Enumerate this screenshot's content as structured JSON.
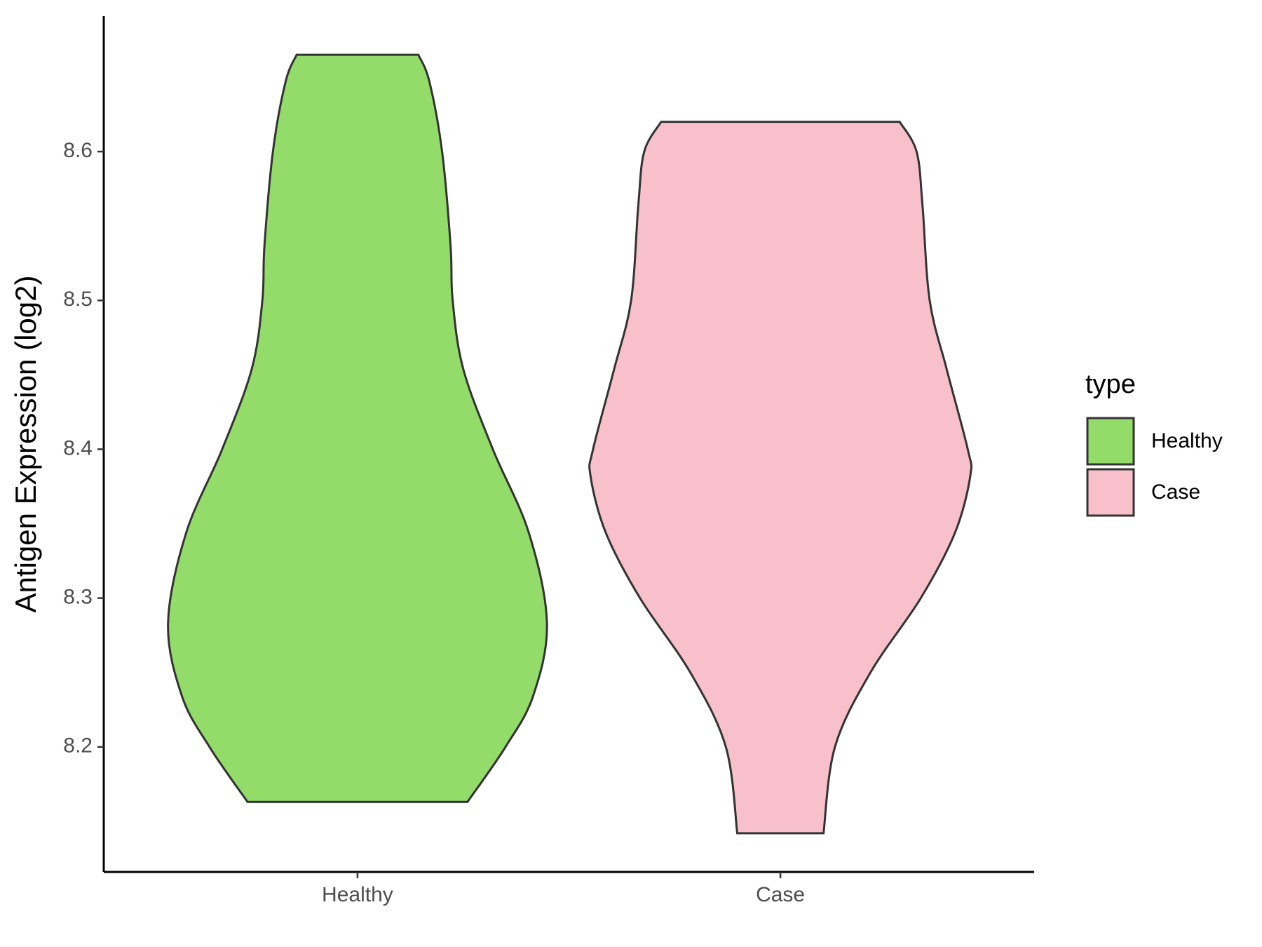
{
  "chart_data": {
    "type": "violin",
    "y_label": "Antigen Expression (log2)",
    "categories": [
      "Healthy",
      "Case"
    ],
    "ylim": [
      8.116,
      8.691
    ],
    "yticks": [
      8.2,
      8.3,
      8.4,
      8.5,
      8.6
    ],
    "legend_title": "type",
    "legend_position": "right",
    "series": [
      {
        "name": "Healthy",
        "color": "#93dc6a",
        "y": [
          8.665,
          8.647,
          8.6,
          8.537,
          8.5,
          8.454,
          8.4,
          8.344,
          8.283,
          8.234,
          8.2,
          8.163
        ],
        "halfwidth": [
          0.144,
          0.17,
          0.2,
          0.22,
          0.225,
          0.25,
          0.32,
          0.405,
          0.448,
          0.415,
          0.35,
          0.26
        ]
      },
      {
        "name": "Case",
        "color": "#f7c0cb",
        "y": [
          8.62,
          8.6,
          8.564,
          8.5,
          8.454,
          8.4,
          8.382,
          8.344,
          8.3,
          8.25,
          8.2,
          8.142
        ],
        "halfwidth": [
          0.282,
          0.322,
          0.336,
          0.353,
          0.393,
          0.443,
          0.449,
          0.413,
          0.332,
          0.213,
          0.129,
          0.102
        ]
      }
    ]
  }
}
